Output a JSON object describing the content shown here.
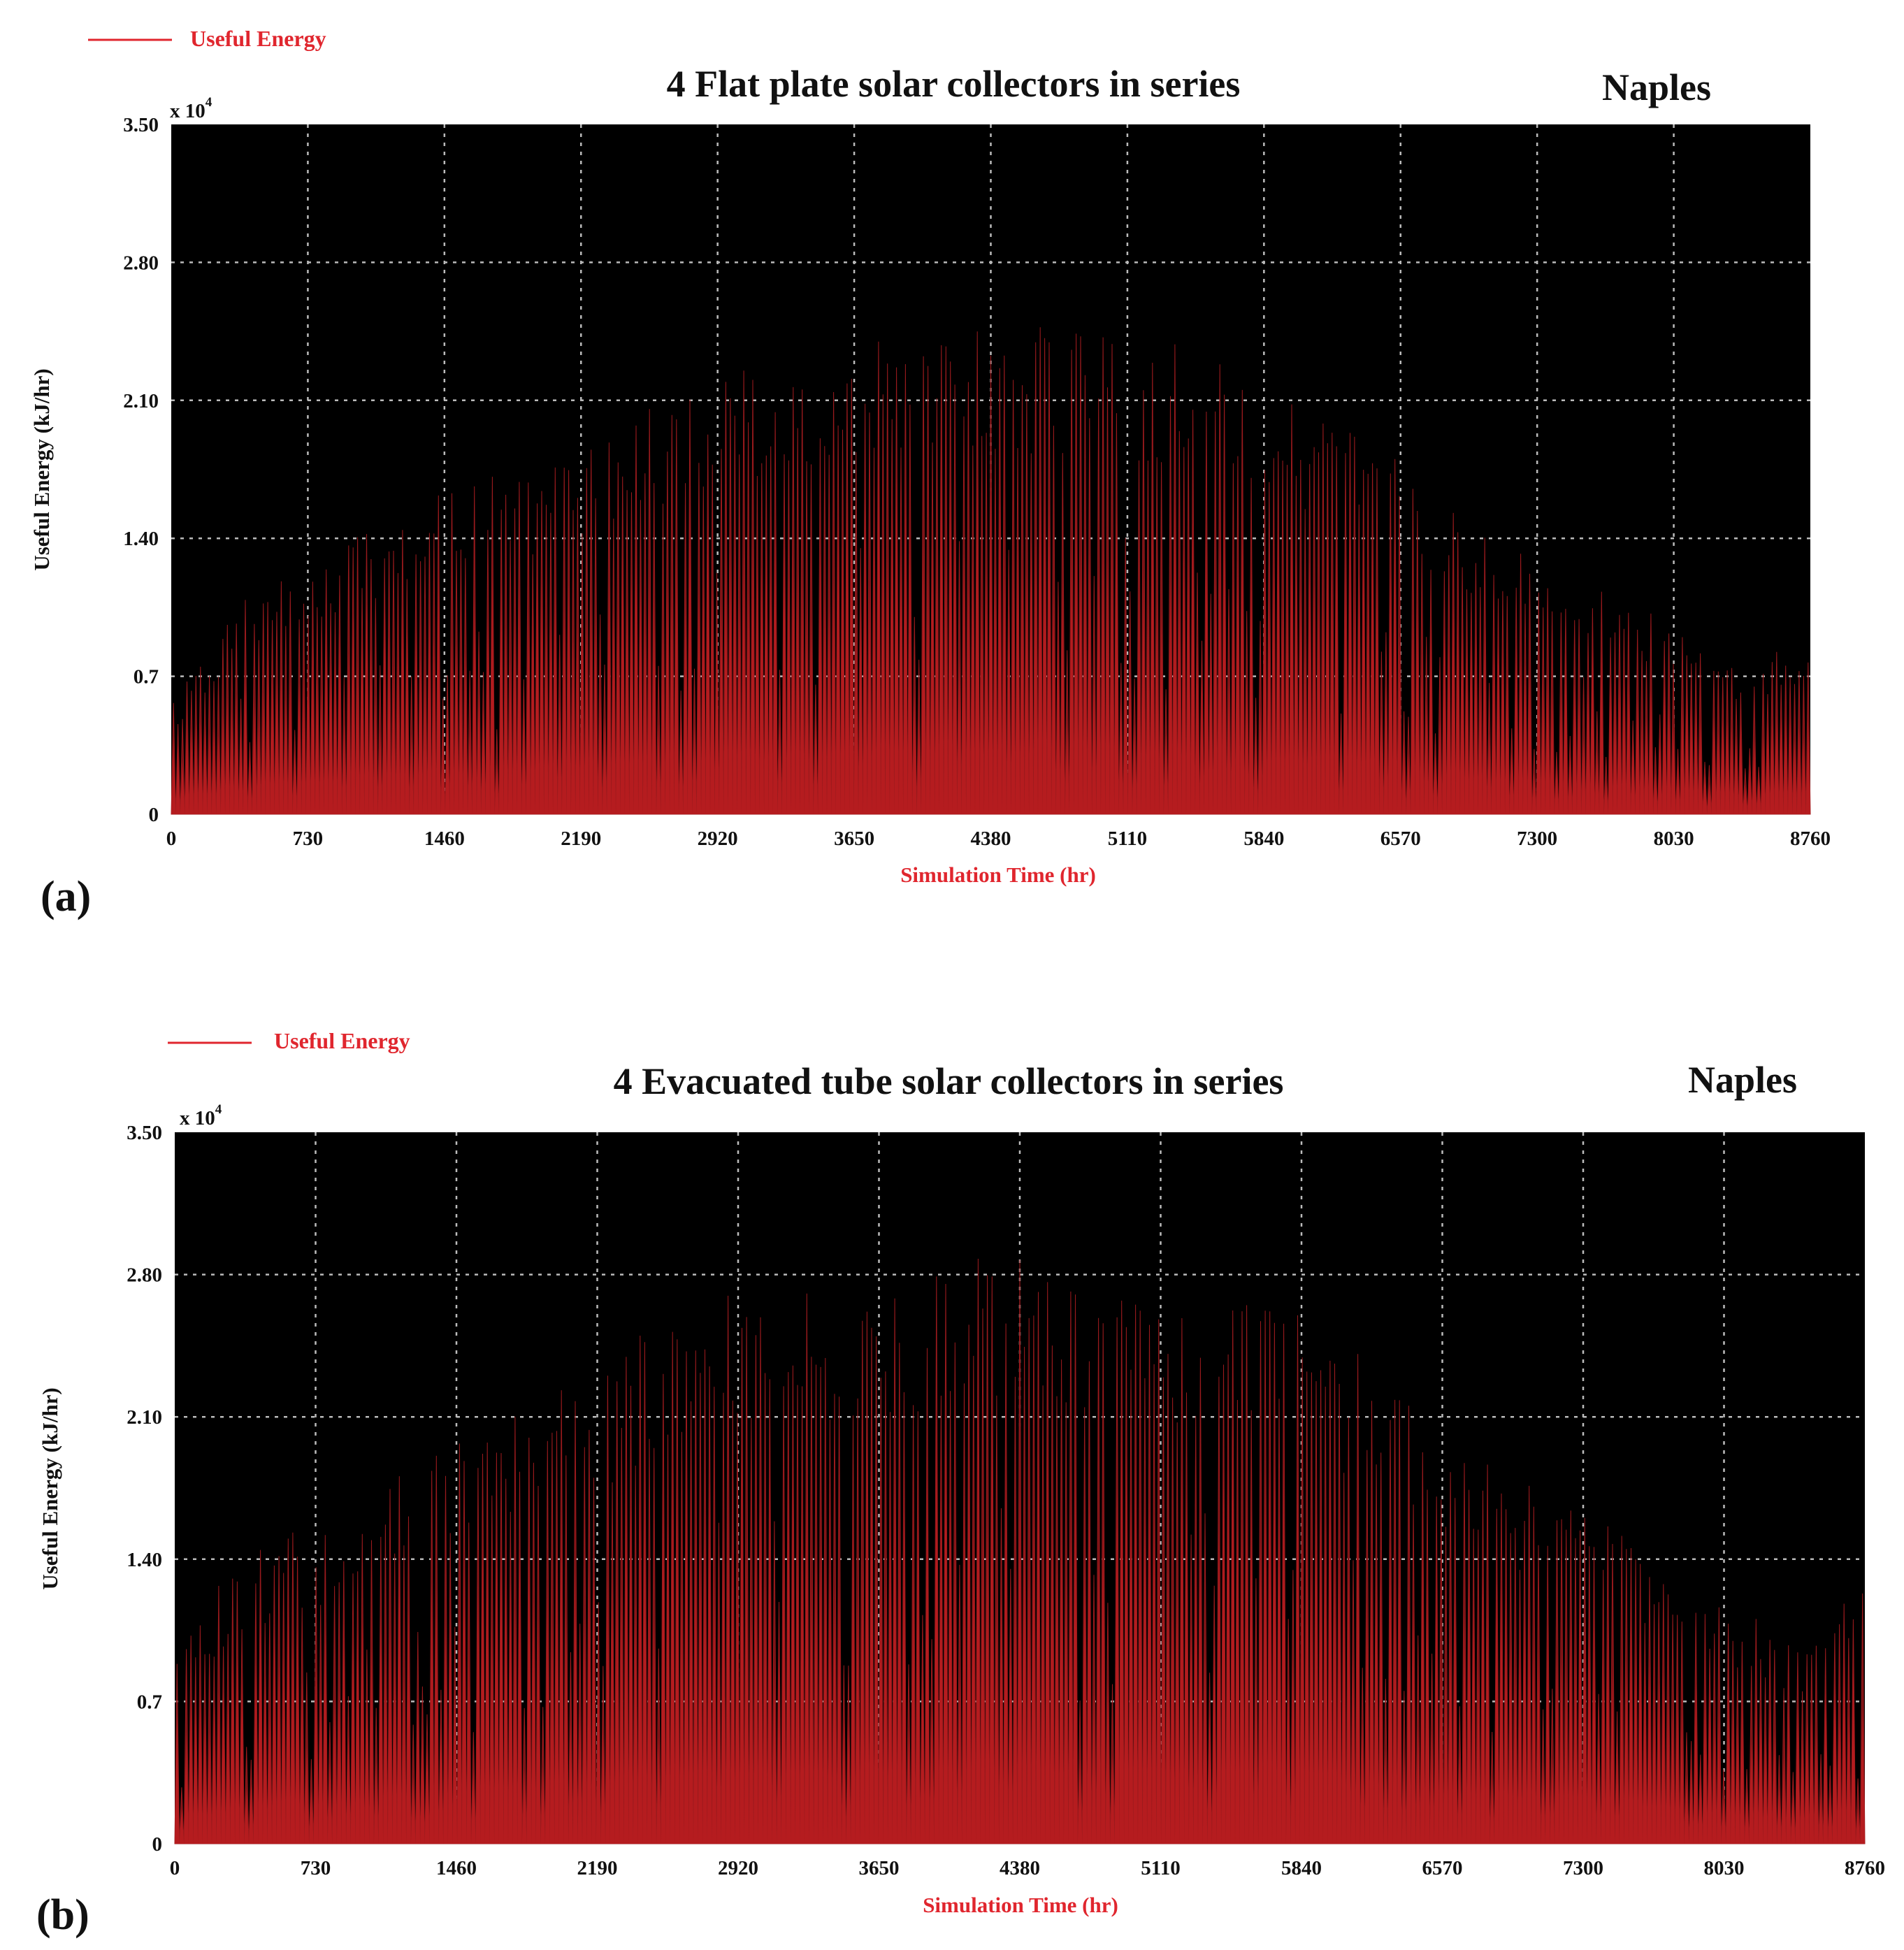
{
  "accent_color": "#e0262e",
  "chart_data": [
    {
      "type": "area",
      "panel_label": "(a)",
      "title": "4  Flat plate  solar collectors in series",
      "location": "Naples",
      "legend": "Useful Energy",
      "xlabel": "Simulation Time (hr)",
      "ylabel": "Useful Energy (kJ/hr)",
      "y_multiplier": "x 10",
      "y_multiplier_exp": "4",
      "xlim": [
        0,
        8760
      ],
      "ylim": [
        0,
        3.5
      ],
      "xticks": [
        "0",
        "730",
        "1460",
        "2190",
        "2920",
        "3650",
        "4380",
        "5110",
        "5840",
        "6570",
        "7300",
        "8030",
        "8760"
      ],
      "yticks": [
        "0",
        "0.7",
        "1.40",
        "2.10",
        "2.80",
        "3.50"
      ],
      "grid": true,
      "legend_position": "top-left",
      "series": [
        {
          "color": "#e0262e",
          "envelope_x": [
            0,
            365,
            730,
            1095,
            1460,
            1825,
            2190,
            2555,
            2920,
            3285,
            3650,
            4015,
            4380,
            4745,
            5110,
            5475,
            5840,
            6205,
            6570,
            6935,
            7300,
            7665,
            8030,
            8395,
            8760
          ],
          "envelope_y": [
            0.55,
            1.05,
            1.25,
            1.45,
            1.62,
            1.72,
            1.85,
            2.05,
            2.22,
            2.3,
            2.35,
            2.45,
            2.45,
            2.42,
            2.38,
            2.32,
            2.15,
            1.98,
            1.75,
            1.5,
            1.3,
            1.1,
            0.95,
            0.75,
            0.88
          ]
        }
      ]
    },
    {
      "type": "area",
      "panel_label": "(b)",
      "title": "4 Evacuated tube solar collectors in series",
      "location": "Naples",
      "legend": "Useful Energy",
      "xlabel": "Simulation Time (hr)",
      "ylabel": "Useful Energy (kJ/hr)",
      "y_multiplier": "x 10",
      "y_multiplier_exp": "4",
      "xlim": [
        0,
        8760
      ],
      "ylim": [
        0,
        3.5
      ],
      "xticks": [
        "0",
        "730",
        "1460",
        "2190",
        "2920",
        "3650",
        "4380",
        "5110",
        "5840",
        "6570",
        "7300",
        "8030",
        "8760"
      ],
      "yticks": [
        "0",
        "0.7",
        "1.40",
        "2.10",
        "2.80",
        "3.50"
      ],
      "grid": true,
      "legend_position": "top-left",
      "series": [
        {
          "color": "#e0262e",
          "envelope_x": [
            0,
            365,
            730,
            1095,
            1460,
            1825,
            2190,
            2555,
            2920,
            3285,
            3650,
            4015,
            4380,
            4745,
            5110,
            5475,
            5840,
            6205,
            6570,
            6935,
            7300,
            7665,
            8030,
            8395,
            8760
          ],
          "envelope_y": [
            1.0,
            1.4,
            1.55,
            1.75,
            1.95,
            2.1,
            2.3,
            2.55,
            2.7,
            2.72,
            2.75,
            2.85,
            2.85,
            2.8,
            2.75,
            2.7,
            2.55,
            2.35,
            2.0,
            1.8,
            1.62,
            1.4,
            1.2,
            0.95,
            1.25
          ]
        }
      ]
    }
  ]
}
